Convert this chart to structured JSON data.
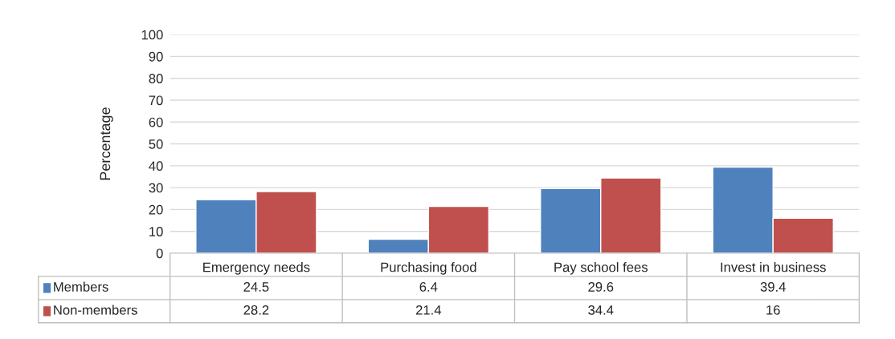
{
  "chart_data": {
    "type": "bar",
    "ylabel": "Percentage",
    "categories": [
      "Emergency needs",
      "Purchasing food",
      "Pay school fees",
      "Invest in business"
    ],
    "series": [
      {
        "name": "Members",
        "color": "#4f81bd",
        "values": [
          24.5,
          6.4,
          29.6,
          39.4
        ]
      },
      {
        "name": "Non-members",
        "color": "#c0504d",
        "values": [
          28.2,
          21.4,
          34.4,
          16
        ]
      }
    ],
    "ylim": [
      0,
      100
    ],
    "yticks": [
      0,
      10,
      20,
      30,
      40,
      50,
      60,
      70,
      80,
      90,
      100
    ],
    "grid": "y",
    "legend": "bottom",
    "data_labels": true
  }
}
